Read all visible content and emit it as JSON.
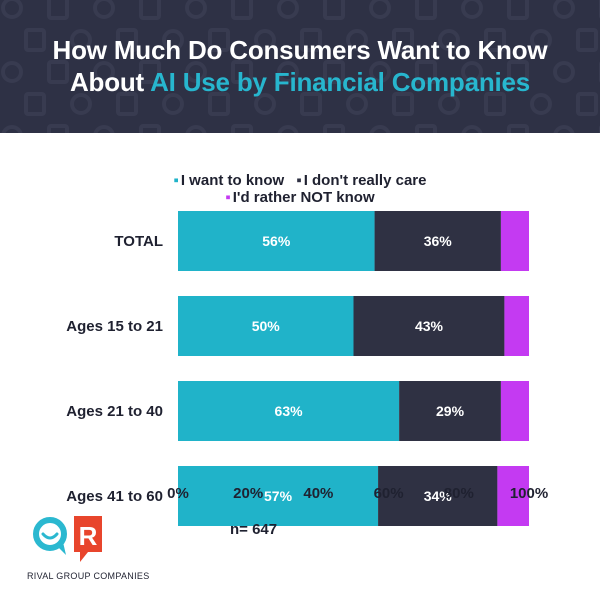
{
  "title": {
    "line1": "How Much Do Consumers Want to Know",
    "line2_prefix": "About ",
    "line2_accent": "AI Use by Financial Companies"
  },
  "colors": {
    "banner": "#2e3145",
    "accent": "#27b6ce",
    "want": "#20b3c9",
    "dont_care": "#2f3143",
    "rather_not": "#c43af2"
  },
  "chart_data": {
    "type": "bar",
    "orientation": "horizontal",
    "stacked": true,
    "title": "How Much Do Consumers Want to Know About AI Use by Financial Companies",
    "categories": [
      "TOTAL",
      "Ages 15 to 21",
      "Ages 21 to 40",
      "Ages 41 to 60"
    ],
    "series": [
      {
        "name": "I want to know",
        "values": [
          56,
          50,
          63,
          57
        ],
        "labels": [
          "56%",
          "50%",
          "63%",
          "57%"
        ]
      },
      {
        "name": "I don't really care",
        "values": [
          36,
          43,
          29,
          34
        ],
        "labels": [
          "36%",
          "43%",
          "29%",
          "34%"
        ]
      },
      {
        "name": "I'd rather NOT know",
        "values": [
          8,
          7,
          8,
          9
        ]
      }
    ],
    "xlim": [
      0,
      100
    ],
    "xticks": [
      "0%",
      "20%",
      "40%",
      "60%",
      "80%",
      "100%"
    ],
    "legend_position": "top",
    "grid": false
  },
  "legend": {
    "want": "I want to know",
    "dont_care": "I don't really care",
    "rather_not": "I'd rather NOT know"
  },
  "sample_size": "n= 647",
  "brand": {
    "logo_letter": "R",
    "company": "RIVAL GROUP COMPANIES"
  }
}
